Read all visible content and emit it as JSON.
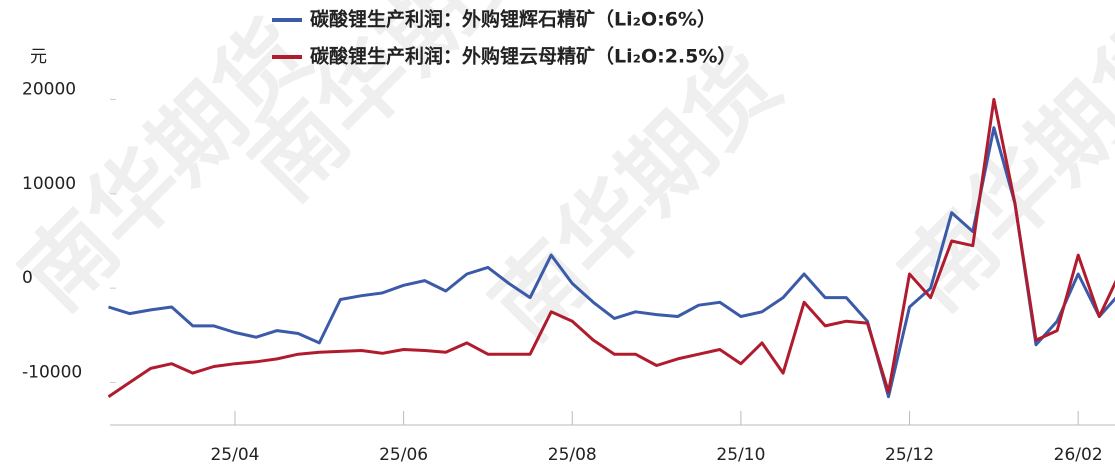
{
  "chart_data": {
    "type": "line",
    "y_label": "元",
    "watermark": "南华期货",
    "categories": [
      null,
      null,
      null,
      null,
      null,
      null,
      "25/04",
      null,
      null,
      null,
      null,
      null,
      null,
      null,
      "25/06",
      null,
      null,
      null,
      null,
      null,
      null,
      null,
      "25/08",
      null,
      null,
      null,
      null,
      null,
      null,
      null,
      "25/10",
      null,
      null,
      null,
      null,
      null,
      null,
      null,
      "25/12",
      null,
      null,
      null,
      null,
      null,
      null,
      null,
      "26/02",
      null,
      null
    ],
    "series": [
      {
        "name": "碳酸锂生产利润：外购锂辉石精矿（Li₂O:6%）",
        "color": "#3b5aa8",
        "values": [
          -2000,
          -2700,
          -2300,
          -2000,
          -4000,
          -4000,
          -4700,
          -5200,
          -4500,
          -4800,
          -5800,
          -1200,
          -800,
          -500,
          300,
          800,
          -300,
          1500,
          2200,
          500,
          -1000,
          3500,
          500,
          -1500,
          -3200,
          -2500,
          -2800,
          -3000,
          -1800,
          -1500,
          -3000,
          -2500,
          -1000,
          1500,
          -1000,
          -1000,
          -3500,
          -11500,
          -2000,
          0,
          8000,
          6000,
          17000,
          9000,
          -6000,
          -3500,
          1500,
          -3000,
          -500
        ]
      },
      {
        "name": "碳酸锂生产利润：外购锂云母精矿（Li₂O:2.5%）",
        "color": "#b01c2e",
        "values": [
          -11500,
          -10000,
          -8500,
          -8000,
          -9000,
          -8300,
          -8000,
          -7800,
          -7500,
          -7000,
          -6800,
          -6700,
          -6600,
          -6900,
          -6500,
          -6600,
          -6800,
          -5800,
          -7000,
          -7000,
          -7000,
          -2500,
          -3500,
          -5500,
          -7000,
          -7000,
          -8200,
          -7500,
          -7000,
          -6500,
          -8000,
          -5800,
          -9000,
          -1500,
          -4000,
          -3500,
          -3700,
          -11000,
          1500,
          -1000,
          5000,
          4500,
          20000,
          9000,
          -5500,
          -4500,
          3500,
          -3000,
          1700
        ]
      }
    ],
    "ylim": [
      -14500,
      21000
    ],
    "yticks": [
      -10000,
      0,
      10000,
      20000
    ],
    "grid": false
  }
}
